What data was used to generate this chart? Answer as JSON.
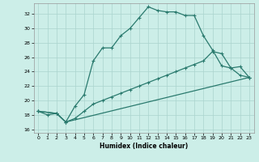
{
  "xlabel": "Humidex (Indice chaleur)",
  "bg_color": "#cceee8",
  "grid_color": "#aad4ce",
  "line_color": "#2a7a6e",
  "xlim": [
    -0.5,
    23.5
  ],
  "ylim": [
    15.5,
    33.5
  ],
  "xticks": [
    0,
    1,
    2,
    3,
    4,
    5,
    6,
    7,
    8,
    9,
    10,
    11,
    12,
    13,
    14,
    15,
    16,
    17,
    18,
    19,
    20,
    21,
    22,
    23
  ],
  "yticks": [
    16,
    18,
    20,
    22,
    24,
    26,
    28,
    30,
    32
  ],
  "line1_x": [
    0,
    1,
    2,
    3,
    4,
    5,
    6,
    7,
    8,
    9,
    10,
    11,
    12,
    13,
    14,
    15,
    16,
    17,
    18,
    19,
    20,
    21,
    22,
    23
  ],
  "line1_y": [
    18.5,
    18.0,
    18.2,
    17.0,
    19.2,
    20.8,
    25.5,
    27.3,
    27.3,
    29.0,
    30.0,
    31.5,
    33.0,
    32.5,
    32.3,
    32.3,
    31.8,
    31.8,
    29.0,
    27.0,
    24.8,
    24.5,
    23.5,
    23.2
  ],
  "line2_x": [
    0,
    2,
    3,
    4,
    5,
    6,
    7,
    8,
    9,
    10,
    11,
    12,
    13,
    14,
    15,
    16,
    17,
    18,
    19,
    20,
    21,
    22,
    23
  ],
  "line2_y": [
    18.5,
    18.2,
    17.0,
    17.5,
    18.5,
    19.5,
    20.0,
    20.5,
    21.0,
    21.5,
    22.0,
    22.5,
    23.0,
    23.5,
    24.0,
    24.5,
    25.0,
    25.5,
    26.8,
    26.5,
    24.5,
    24.7,
    23.2
  ],
  "line3_x": [
    0,
    2,
    3,
    23
  ],
  "line3_y": [
    18.5,
    18.2,
    17.0,
    23.2
  ]
}
